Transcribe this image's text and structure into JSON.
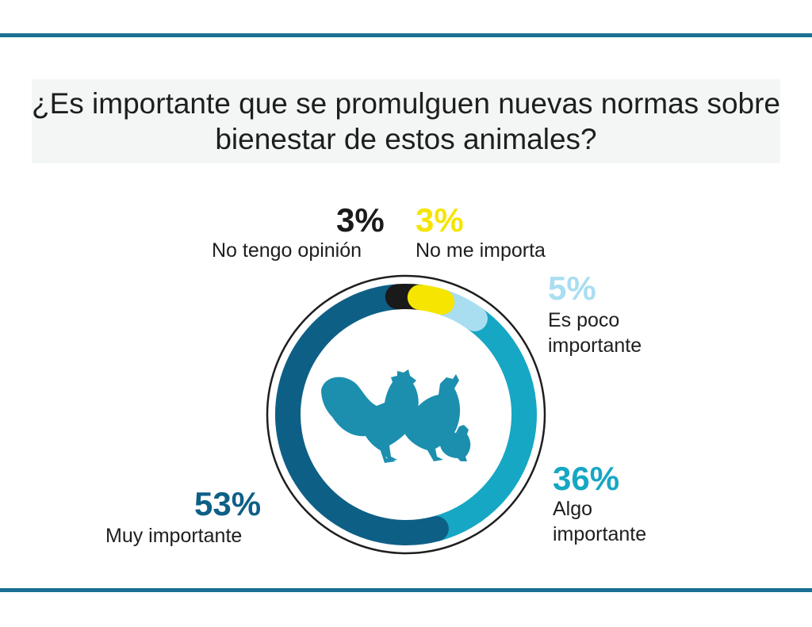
{
  "title": "¿Es importante que se promulguen nuevas normas sobre bienestar de estos animales?",
  "colors": {
    "rule": "#1a6f93",
    "muy": "#0e5f86",
    "algo": "#16a7c4",
    "poco": "#a9def0",
    "no_importa": "#f5e500",
    "no_opinion": "#1a1a1a",
    "icon": "#1c8fae"
  },
  "icon": "hen-rooster-chick-icon",
  "chart_data": {
    "type": "pie",
    "title": "¿Es importante que se promulguen nuevas normas sobre bienestar de estos animales?",
    "unit": "%",
    "slices": [
      {
        "label": "No me importa",
        "value": 3,
        "display": "3%",
        "color": "#f5e500"
      },
      {
        "label": "Es poco importante",
        "value": 5,
        "display": "5%",
        "color": "#a9def0"
      },
      {
        "label": "Algo importante",
        "value": 36,
        "display": "36%",
        "color": "#16a7c4"
      },
      {
        "label": "Muy importante",
        "value": 53,
        "display": "53%",
        "color": "#0e5f86"
      },
      {
        "label": "No tengo opinión",
        "value": 3,
        "display": "3%",
        "color": "#1a1a1a"
      }
    ]
  }
}
